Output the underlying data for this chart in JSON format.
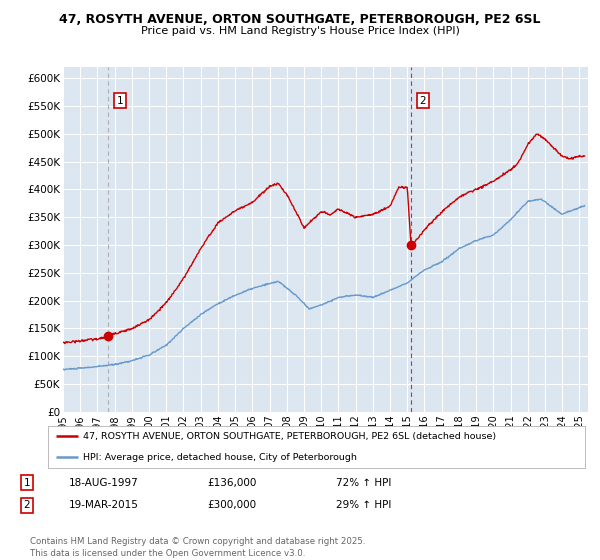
{
  "title_line1": "47, ROSYTH AVENUE, ORTON SOUTHGATE, PETERBOROUGH, PE2 6SL",
  "title_line2": "Price paid vs. HM Land Registry's House Price Index (HPI)",
  "ylim": [
    0,
    620000
  ],
  "yticks": [
    0,
    50000,
    100000,
    150000,
    200000,
    250000,
    300000,
    350000,
    400000,
    450000,
    500000,
    550000,
    600000
  ],
  "ytick_labels": [
    "£0",
    "£50K",
    "£100K",
    "£150K",
    "£200K",
    "£250K",
    "£300K",
    "£350K",
    "£400K",
    "£450K",
    "£500K",
    "£550K",
    "£600K"
  ],
  "xlim_start": 1995.0,
  "xlim_end": 2025.5,
  "transaction1_date": 1997.63,
  "transaction1_price": 136000,
  "transaction1_label": "1",
  "transaction2_date": 2015.22,
  "transaction2_price": 300000,
  "transaction2_label": "2",
  "red_line_color": "#cc0000",
  "blue_line_color": "#6699cc",
  "plot_bg_color": "#dce6f0",
  "grid_color": "#ffffff",
  "vline1_color": "#aaaaaa",
  "vline2_color": "#cc0000",
  "legend_entry1": "47, ROSYTH AVENUE, ORTON SOUTHGATE, PETERBOROUGH, PE2 6SL (detached house)",
  "legend_entry2": "HPI: Average price, detached house, City of Peterborough",
  "annotation1_date": "18-AUG-1997",
  "annotation1_price": "£136,000",
  "annotation1_hpi": "72% ↑ HPI",
  "annotation2_date": "19-MAR-2015",
  "annotation2_price": "£300,000",
  "annotation2_hpi": "29% ↑ HPI",
  "footer": "Contains HM Land Registry data © Crown copyright and database right 2025.\nThis data is licensed under the Open Government Licence v3.0."
}
